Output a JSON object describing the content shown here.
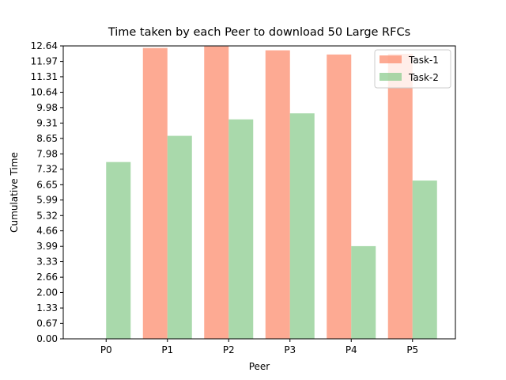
{
  "chart_data": {
    "type": "bar",
    "title": "Time taken by each Peer to download 50 Large RFCs",
    "xlabel": "Peer",
    "ylabel": "Cumulative Time",
    "categories": [
      "P0",
      "P1",
      "P2",
      "P3",
      "P4",
      "P5"
    ],
    "series": [
      {
        "name": "Task-1",
        "color": "#fc8d6f",
        "values": [
          0,
          12.55,
          12.62,
          12.45,
          12.27,
          12.3
        ]
      },
      {
        "name": "Task-2",
        "color": "#8ccc8f",
        "values": [
          7.63,
          8.76,
          9.47,
          9.73,
          4.0,
          6.83
        ]
      }
    ],
    "yticks": [
      "0.00",
      "0.67",
      "1.33",
      "2.00",
      "2.66",
      "3.33",
      "3.99",
      "4.66",
      "5.32",
      "5.99",
      "6.65",
      "7.32",
      "7.98",
      "8.65",
      "9.31",
      "9.98",
      "10.64",
      "11.31",
      "11.97",
      "12.64"
    ],
    "ylim": [
      0,
      12.64
    ],
    "legend_position": "top-right",
    "grid": false
  }
}
